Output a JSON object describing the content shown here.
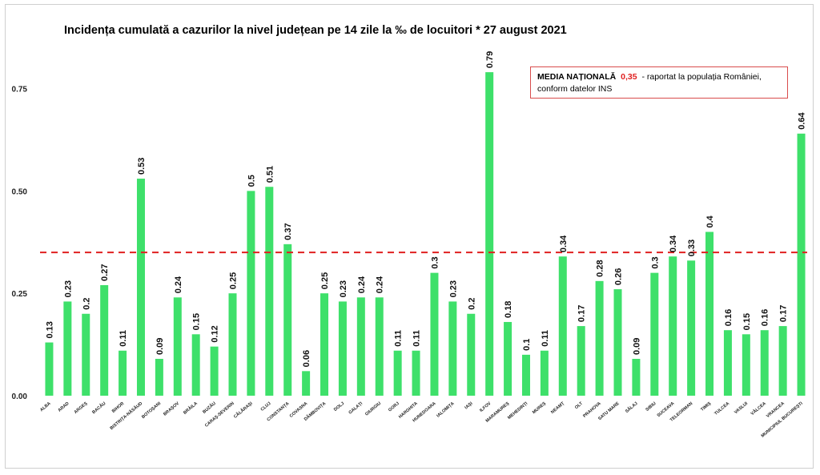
{
  "chart_data": {
    "type": "bar",
    "title": "Incidența cumulată a cazurilor la nivel județean pe 14 zile la ‰ de locuitori * 27 august 2021",
    "xlabel": "",
    "ylabel": "",
    "ylim": [
      0,
      0.8
    ],
    "yticks": [
      "0.00",
      "0.25",
      "0.50",
      "0.75"
    ],
    "ytick_values": [
      0,
      0.25,
      0.5,
      0.75
    ],
    "grid": false,
    "bar_color": "#3ee06a",
    "reference_color": "#e02020",
    "reference_line": 0.35,
    "categories": [
      "ALBA",
      "ARAD",
      "ARGEȘ",
      "BACĂU",
      "BIHOR",
      "BISTRIȚA-NĂSĂUD",
      "BOTOȘANI",
      "BRAȘOV",
      "BRĂILA",
      "BUZĂU",
      "CARAȘ-SEVERIN",
      "CĂLĂRAȘI",
      "CLUJ",
      "CONSTANȚA",
      "COVASNA",
      "DÂMBOVIȚA",
      "DOLJ",
      "GALAȚI",
      "GIURGIU",
      "GORJ",
      "HARGHITA",
      "HUNEDOARA",
      "IALOMIȚA",
      "IAȘI",
      "ILFOV",
      "MARAMUREȘ",
      "MEHEDINȚI",
      "MUREȘ",
      "NEAMȚ",
      "OLT",
      "PRAHOVA",
      "SATU MARE",
      "SĂLAJ",
      "SIBIU",
      "SUCEAVA",
      "TELEORMAN",
      "TIMIȘ",
      "TULCEA",
      "VASLUI",
      "VÂLCEA",
      "VRANCEA",
      "MUNICIPIUL BUCUREȘTI"
    ],
    "values": [
      0.13,
      0.23,
      0.2,
      0.27,
      0.11,
      0.53,
      0.09,
      0.24,
      0.15,
      0.12,
      0.25,
      0.5,
      0.51,
      0.37,
      0.06,
      0.25,
      0.23,
      0.24,
      0.24,
      0.11,
      0.11,
      0.3,
      0.23,
      0.2,
      0.79,
      0.18,
      0.1,
      0.11,
      0.34,
      0.17,
      0.28,
      0.26,
      0.09,
      0.3,
      0.34,
      0.33,
      0.4,
      0.16,
      0.15,
      0.16,
      0.17,
      0.64
    ],
    "value_labels": [
      "0.13",
      "0.23",
      "0.2",
      "0.27",
      "0.11",
      "0.53",
      "0.09",
      "0.24",
      "0.15",
      "0.12",
      "0.25",
      "0.5",
      "0.51",
      "0.37",
      "0.06",
      "0.25",
      "0.23",
      "0.24",
      "0.24",
      "0.11",
      "0.11",
      "0.3",
      "0.23",
      "0.2",
      "0.79",
      "0.18",
      "0.1",
      "0.11",
      "0.34",
      "0.17",
      "0.28",
      "0.26",
      "0.09",
      "0.3",
      "0.34",
      "0.33",
      "0.4",
      "0.16",
      "0.15",
      "0.16",
      "0.17",
      "0.64"
    ]
  },
  "legend_box": {
    "label": "MEDIA NAȚIONALĂ",
    "value": "0,35",
    "text_line1": "- raportat la populația României,",
    "text_line2": "conform datelor INS"
  }
}
